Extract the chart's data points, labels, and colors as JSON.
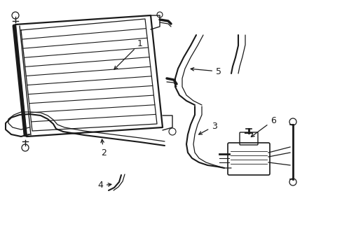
{
  "bg_color": "#ffffff",
  "line_color": "#1a1a1a",
  "lw_thick": 1.4,
  "lw_med": 1.0,
  "lw_thin": 0.7,
  "fig_width": 4.89,
  "fig_height": 3.6,
  "dpi": 100
}
